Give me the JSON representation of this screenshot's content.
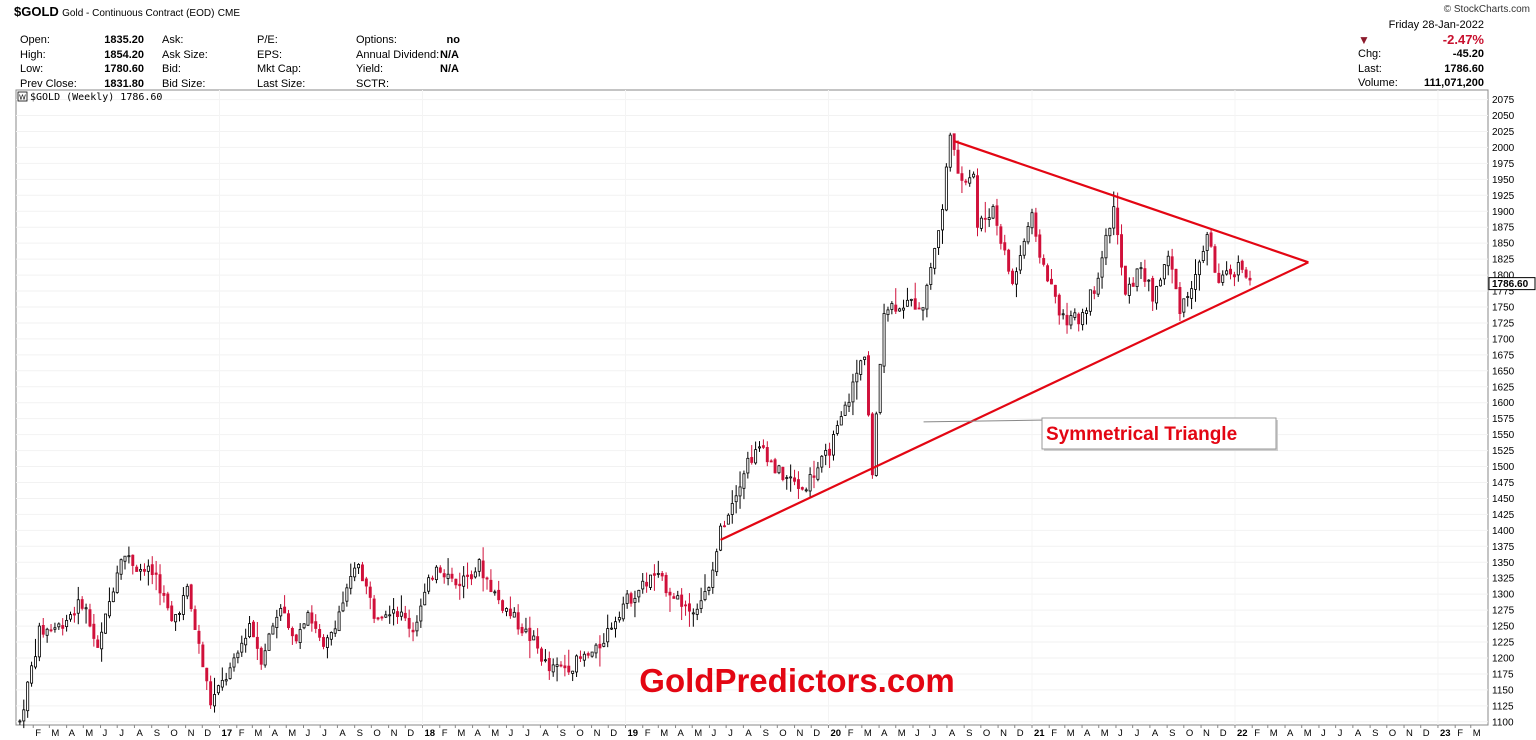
{
  "header": {
    "symbol": "$GOLD",
    "name": "Gold - Continuous Contract (EOD)",
    "exchange": "CME",
    "branding": "© StockCharts.com"
  },
  "quote": {
    "col1": [
      {
        "label": "Open:",
        "value": "1835.20"
      },
      {
        "label": "High:",
        "value": "1854.20"
      },
      {
        "label": "Low:",
        "value": "1780.60"
      },
      {
        "label": "Prev Close:",
        "value": "1831.80"
      }
    ],
    "col2": [
      "Ask:",
      "Ask Size:",
      "Bid:",
      "Bid Size:"
    ],
    "col3": [
      "P/E:",
      "EPS:",
      "Mkt Cap:",
      "Last Size:"
    ],
    "col4": [
      {
        "label": "Options:",
        "value": "no"
      },
      {
        "label": "Annual Dividend:",
        "value": "N/A"
      },
      {
        "label": "Yield:",
        "value": "N/A"
      },
      {
        "label": "SCTR:",
        "value": ""
      }
    ]
  },
  "right_info": {
    "date": "Friday   28-Jan-2022",
    "change_pct": "-2.47%",
    "chg_label": "Chg:",
    "chg_value": "-45.20",
    "last_label": "Last:",
    "last_value": "1786.60",
    "volume_label": "Volume:",
    "volume_value": "111,071,200"
  },
  "chart_data": {
    "type": "candlestick",
    "legend": "$GOLD (Weekly) 1786.60",
    "last_price_label": "1786.60",
    "y_ticks": [
      "2075",
      "2050",
      "2025",
      "2000",
      "1975",
      "1950",
      "1925",
      "1900",
      "1875",
      "1850",
      "1825",
      "1800",
      "1775",
      "1750",
      "1725",
      "1700",
      "1675",
      "1650",
      "1625",
      "1600",
      "1575",
      "1550",
      "1525",
      "1500",
      "1475",
      "1450",
      "1425",
      "1400",
      "1375",
      "1350",
      "1325",
      "1300",
      "1275",
      "1250",
      "1225",
      "1200",
      "1175",
      "1150",
      "1125",
      "1100"
    ],
    "ylim": [
      1095,
      2090
    ],
    "x_labels": [
      "F",
      "M",
      "A",
      "M",
      "J",
      "J",
      "A",
      "S",
      "O",
      "N",
      "D",
      "17",
      "F",
      "M",
      "A",
      "M",
      "J",
      "J",
      "A",
      "S",
      "O",
      "N",
      "D",
      "18",
      "F",
      "M",
      "A",
      "M",
      "J",
      "J",
      "A",
      "S",
      "O",
      "N",
      "D",
      "19",
      "F",
      "M",
      "A",
      "M",
      "J",
      "J",
      "A",
      "S",
      "O",
      "N",
      "D",
      "20",
      "F",
      "M",
      "A",
      "M",
      "J",
      "J",
      "A",
      "S",
      "O",
      "N",
      "D",
      "21",
      "F",
      "M",
      "A",
      "M",
      "J",
      "J",
      "A",
      "S",
      "O",
      "N",
      "D",
      "22",
      "F",
      "M",
      "A",
      "M",
      "J",
      "J",
      "A",
      "S",
      "O",
      "N",
      "D",
      "23",
      "F",
      "M"
    ],
    "year_labels": [
      "17",
      "18",
      "19",
      "20",
      "21",
      "22",
      "23"
    ],
    "x_range": [
      "2016-01",
      "2023-03"
    ],
    "price_path": [
      [
        "2016-01-08",
        1100
      ],
      [
        "2016-02-12",
        1240
      ],
      [
        "2016-03-18",
        1250
      ],
      [
        "2016-05-01",
        1290
      ],
      [
        "2016-05-27",
        1210
      ],
      [
        "2016-07-08",
        1365
      ],
      [
        "2016-08-12",
        1340
      ],
      [
        "2016-09-09",
        1330
      ],
      [
        "2016-10-07",
        1255
      ],
      [
        "2016-11-04",
        1305
      ],
      [
        "2016-12-16",
        1130
      ],
      [
        "2017-01-27",
        1190
      ],
      [
        "2017-02-24",
        1255
      ],
      [
        "2017-03-17",
        1200
      ],
      [
        "2017-04-21",
        1285
      ],
      [
        "2017-05-12",
        1225
      ],
      [
        "2017-06-09",
        1275
      ],
      [
        "2017-07-07",
        1210
      ],
      [
        "2017-09-08",
        1350
      ],
      [
        "2017-10-06",
        1270
      ],
      [
        "2017-11-10",
        1280
      ],
      [
        "2017-12-15",
        1245
      ],
      [
        "2018-01-26",
        1350
      ],
      [
        "2018-03-02",
        1315
      ],
      [
        "2018-04-13",
        1345
      ],
      [
        "2018-05-18",
        1290
      ],
      [
        "2018-07-20",
        1225
      ],
      [
        "2018-08-17",
        1180
      ],
      [
        "2018-09-28",
        1190
      ],
      [
        "2018-11-09",
        1210
      ],
      [
        "2018-12-28",
        1285
      ],
      [
        "2019-02-22",
        1330
      ],
      [
        "2019-04-26",
        1275
      ],
      [
        "2019-05-31",
        1305
      ],
      [
        "2019-06-21",
        1400
      ],
      [
        "2019-08-09",
        1510
      ],
      [
        "2019-09-06",
        1530
      ],
      [
        "2019-09-27",
        1495
      ],
      [
        "2019-11-15",
        1465
      ],
      [
        "2019-12-27",
        1515
      ],
      [
        "2020-01-17",
        1555
      ],
      [
        "2020-02-21",
        1645
      ],
      [
        "2020-03-06",
        1680
      ],
      [
        "2020-03-20",
        1485
      ],
      [
        "2020-04-10",
        1750
      ],
      [
        "2020-05-15",
        1755
      ],
      [
        "2020-06-19",
        1755
      ],
      [
        "2020-07-24",
        1900
      ],
      [
        "2020-08-07",
        2030
      ],
      [
        "2020-08-21",
        1950
      ],
      [
        "2020-09-18",
        1960
      ],
      [
        "2020-09-25",
        1875
      ],
      [
        "2020-10-23",
        1905
      ],
      [
        "2020-11-27",
        1785
      ],
      [
        "2020-12-31",
        1895
      ],
      [
        "2021-01-08",
        1850
      ],
      [
        "2021-02-26",
        1730
      ],
      [
        "2021-03-26",
        1730
      ],
      [
        "2021-04-23",
        1780
      ],
      [
        "2021-05-28",
        1905
      ],
      [
        "2021-06-18",
        1765
      ],
      [
        "2021-07-16",
        1815
      ],
      [
        "2021-08-06",
        1765
      ],
      [
        "2021-09-03",
        1830
      ],
      [
        "2021-09-24",
        1750
      ],
      [
        "2021-10-22",
        1795
      ],
      [
        "2021-11-12",
        1865
      ],
      [
        "2021-12-03",
        1785
      ],
      [
        "2022-01-14",
        1818
      ],
      [
        "2022-01-28",
        1786
      ]
    ],
    "annotations": [
      {
        "type": "trendline",
        "from": [
          "2020-08-14",
          2010
        ],
        "to": [
          "2022-05-13",
          1820
        ],
        "color": "#e30613"
      },
      {
        "type": "trendline",
        "from": [
          "2019-06-21",
          1385
        ],
        "to": [
          "2022-05-13",
          1820
        ],
        "color": "#e30613"
      },
      {
        "type": "label",
        "text": "Symmetrical Triangle",
        "at": [
          "2021-05-15",
          1475
        ],
        "pointer": [
          "2020-06-20",
          1570
        ]
      }
    ],
    "watermark": "GoldPredictors.com"
  }
}
